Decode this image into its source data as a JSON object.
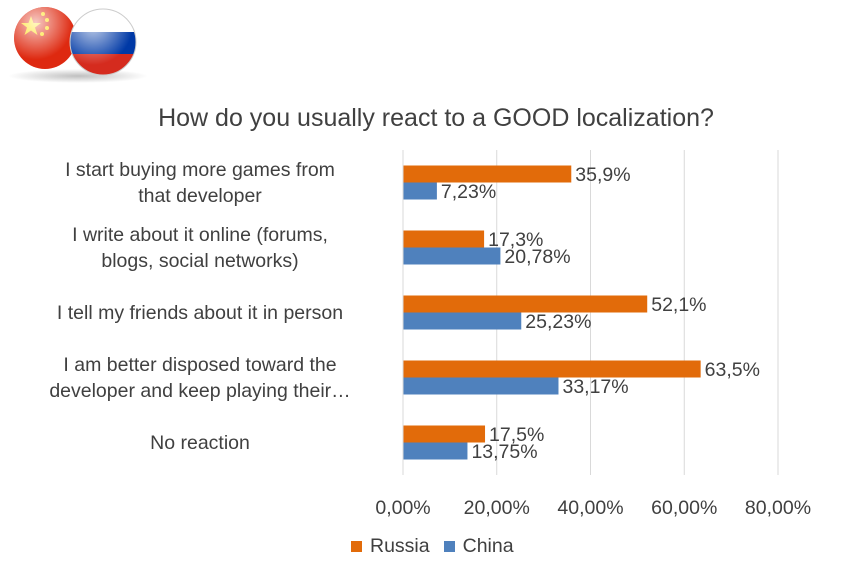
{
  "flags": {
    "china": {
      "red": "#de2910",
      "yellow": "#ffde00"
    },
    "russia": {
      "white": "#ffffff",
      "blue": "#0039a6",
      "red": "#d52b1e"
    }
  },
  "chart_data": {
    "type": "bar",
    "orientation": "horizontal",
    "title": "How do you usually react to a GOOD localization?",
    "xlabel": "",
    "ylabel": "",
    "categories": [
      [
        "I start buying more games from",
        "that developer"
      ],
      [
        "I write about it online (forums,",
        "blogs, social networks)"
      ],
      [
        "I tell my friends about it in person"
      ],
      [
        "I am better disposed toward the",
        "developer and keep playing their…"
      ],
      [
        "No reaction"
      ]
    ],
    "series": [
      {
        "name": "Russia",
        "color": "#e26b0a",
        "values": [
          35.9,
          17.3,
          52.1,
          63.5,
          17.5
        ],
        "labels": [
          "35,9%",
          "17,3%",
          "52,1%",
          "63,5%",
          "17,5%"
        ]
      },
      {
        "name": "China",
        "color": "#4f81bd",
        "values": [
          7.23,
          20.78,
          25.23,
          33.17,
          13.75
        ],
        "labels": [
          "7,23%",
          "20,78%",
          "25,23%",
          "33,17%",
          "13,75%"
        ]
      }
    ],
    "xlim": [
      0,
      80
    ],
    "x_ticks": [
      0,
      20,
      40,
      60,
      80
    ],
    "x_tick_labels": [
      "0,00%",
      "20,00%",
      "40,00%",
      "60,00%",
      "80,00%"
    ],
    "grid": true,
    "legend_position": "bottom"
  }
}
